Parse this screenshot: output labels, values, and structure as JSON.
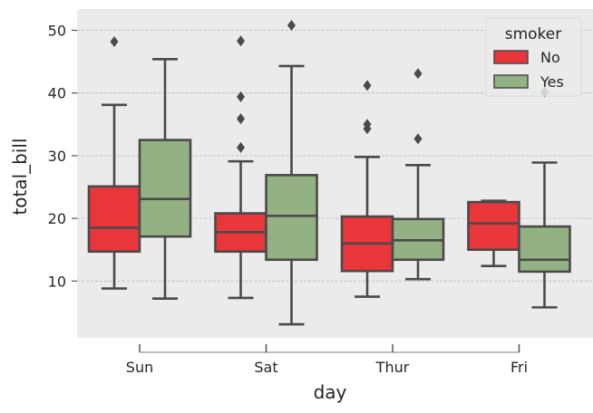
{
  "chart_data": {
    "type": "boxplot",
    "xlabel": "day",
    "ylabel": "total_bill",
    "categories": [
      "Sun",
      "Sat",
      "Thur",
      "Fri"
    ],
    "ylim": [
      0,
      53
    ],
    "yticks": [
      10,
      20,
      30,
      40,
      50
    ],
    "grid": true,
    "legend": {
      "title": "smoker",
      "placement": "top-right"
    },
    "series": [
      {
        "name": "No",
        "color": "#e8363b",
        "boxes": [
          {
            "min": 8.8,
            "q1": 14.7,
            "median": 18.5,
            "q3": 25.1,
            "max": 38.1,
            "outliers": [
              48.2
            ]
          },
          {
            "min": 7.3,
            "q1": 14.7,
            "median": 17.8,
            "q3": 20.8,
            "max": 29.1,
            "outliers": [
              31.3,
              35.9,
              39.4,
              48.3
            ]
          },
          {
            "min": 7.5,
            "q1": 11.6,
            "median": 16.0,
            "q3": 20.3,
            "max": 29.8,
            "outliers": [
              34.3,
              35.0,
              41.2
            ]
          },
          {
            "min": 12.4,
            "q1": 15.0,
            "median": 19.2,
            "q3": 22.6,
            "max": 22.8,
            "outliers": []
          }
        ]
      },
      {
        "name": "Yes",
        "color": "#93b182",
        "boxes": [
          {
            "min": 7.2,
            "q1": 17.1,
            "median": 23.1,
            "q3": 32.5,
            "max": 45.4,
            "outliers": []
          },
          {
            "min": 3.1,
            "q1": 13.4,
            "median": 20.4,
            "q3": 26.9,
            "max": 44.3,
            "outliers": [
              50.8
            ]
          },
          {
            "min": 10.3,
            "q1": 13.4,
            "median": 16.5,
            "q3": 19.9,
            "max": 28.5,
            "outliers": [
              32.7,
              43.1
            ]
          },
          {
            "min": 5.8,
            "q1": 11.5,
            "median": 13.4,
            "q3": 18.7,
            "max": 28.9,
            "outliers": [
              40.2
            ]
          }
        ]
      }
    ]
  }
}
